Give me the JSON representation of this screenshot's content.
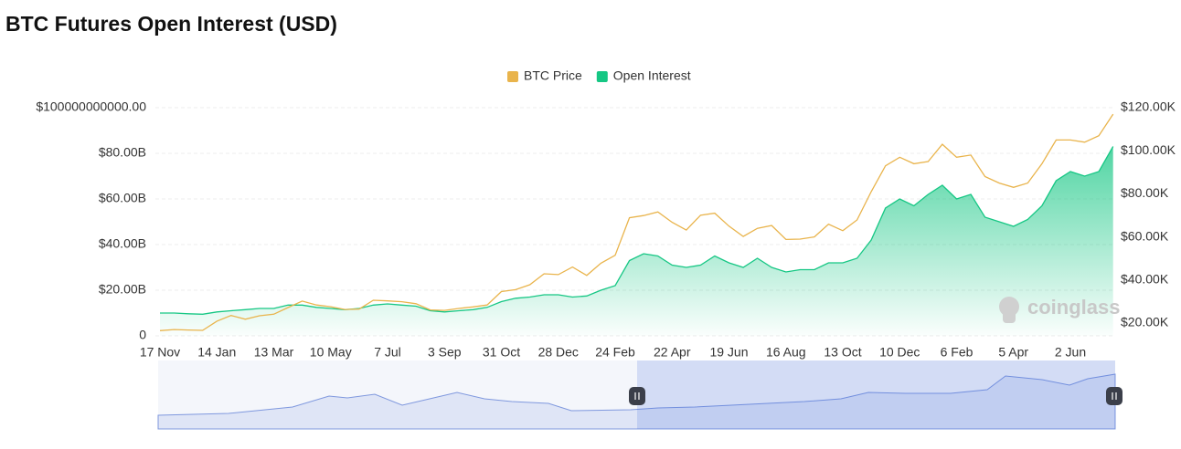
{
  "chart_data": {
    "type": "line",
    "title": "BTC Futures Open Interest (USD)",
    "watermark": "coinglass",
    "legend": "top",
    "grid": true,
    "categories": [
      "17 Nov",
      null,
      null,
      null,
      "14 Jan",
      null,
      null,
      null,
      "13 Mar",
      null,
      null,
      null,
      "10 May",
      null,
      null,
      null,
      "7 Jul",
      null,
      null,
      null,
      "3 Sep",
      null,
      null,
      null,
      "31 Oct",
      null,
      null,
      null,
      "28 Dec",
      null,
      null,
      null,
      "24 Feb",
      null,
      null,
      null,
      "22 Apr",
      null,
      null,
      null,
      "19 Jun",
      null,
      null,
      null,
      "16 Aug",
      null,
      null,
      null,
      "13 Oct",
      null,
      null,
      null,
      "10 Dec",
      null,
      null,
      null,
      "6 Feb",
      null,
      null,
      null,
      "5 Apr",
      null,
      null,
      null,
      "2 Jun",
      null,
      null,
      null
    ],
    "series": [
      {
        "name": "BTC Price",
        "color": "#e9b44c",
        "axis": "y2",
        "values": [
          16500,
          17000,
          16800,
          16600,
          20900,
          23500,
          21800,
          23400,
          24100,
          27200,
          30200,
          28400,
          27600,
          26300,
          26500,
          30600,
          30300,
          29900,
          29000,
          26100,
          25900,
          26800,
          27500,
          28400,
          34600,
          35500,
          37800,
          42900,
          42500,
          46000,
          42100,
          47800,
          51500,
          68900,
          69900,
          71600,
          66800,
          63200,
          70100,
          71000,
          65000,
          60200,
          64000,
          65300,
          58800,
          59000,
          60000,
          65900,
          62900,
          67900,
          81000,
          93000,
          97000,
          94000,
          95000,
          103000,
          97000,
          98000,
          88000,
          85000,
          83000,
          85000,
          94000,
          105000,
          105000,
          104000,
          107000,
          117000
        ]
      },
      {
        "name": "Open Interest",
        "color": "#16c784",
        "area": true,
        "values": [
          10000000000.0,
          10000000000.0,
          9700000000.0,
          9500000000.0,
          10500000000.0,
          11000000000.0,
          11500000000.0,
          12000000000.0,
          12000000000.0,
          13500000000.0,
          13500000000.0,
          12500000000.0,
          12000000000.0,
          11500000000.0,
          12000000000.0,
          13500000000.0,
          14000000000.0,
          13500000000.0,
          13000000000.0,
          11000000000.0,
          10500000000.0,
          11000000000.0,
          11500000000.0,
          12500000000.0,
          15000000000.0,
          16500000000.0,
          17000000000.0,
          18000000000.0,
          18000000000.0,
          17000000000.0,
          17500000000.0,
          20000000000.0,
          22000000000.0,
          33000000000.0,
          36000000000.0,
          35000000000.0,
          31000000000.0,
          30000000000.0,
          31000000000.0,
          35000000000.0,
          32000000000.0,
          30000000000.0,
          34000000000.0,
          30000000000.0,
          28000000000.0,
          29000000000.0,
          29000000000.0,
          32000000000.0,
          32000000000.0,
          34000000000.0,
          42000000000.0,
          56000000000.0,
          60000000000.0,
          57000000000.0,
          62000000000.0,
          66000000000.0,
          60000000000.0,
          62000000000.0,
          52000000000.0,
          50000000000.0,
          48000000000.0,
          51000000000.0,
          57000000000.0,
          68000000000.0,
          72000000000.0,
          70000000000.0,
          72000000000.0,
          83000000000.0
        ]
      }
    ],
    "ylim": [
      0,
      100000000000
    ],
    "yticks": [
      0,
      {
        "value": 20000000000,
        "label": "$20.00B"
      },
      {
        "value": 40000000000,
        "label": "$40.00B"
      },
      {
        "value": 60000000000,
        "label": "$60.00B"
      },
      {
        "value": 80000000000,
        "label": "$80.00B"
      },
      {
        "value": 100000000000,
        "label": "$100000000000.00"
      }
    ],
    "y2lim": [
      14070,
      120000
    ],
    "y2ticks": [
      {
        "value": 20000,
        "label": "$20.00K"
      },
      {
        "value": 40000,
        "label": "$40.00K"
      },
      {
        "value": 60000,
        "label": "$60.00K"
      },
      {
        "value": 80000,
        "label": "$80.00K"
      },
      {
        "value": 100000,
        "label": "$100.00K"
      },
      {
        "value": 120000,
        "label": "$120.00K"
      }
    ]
  }
}
